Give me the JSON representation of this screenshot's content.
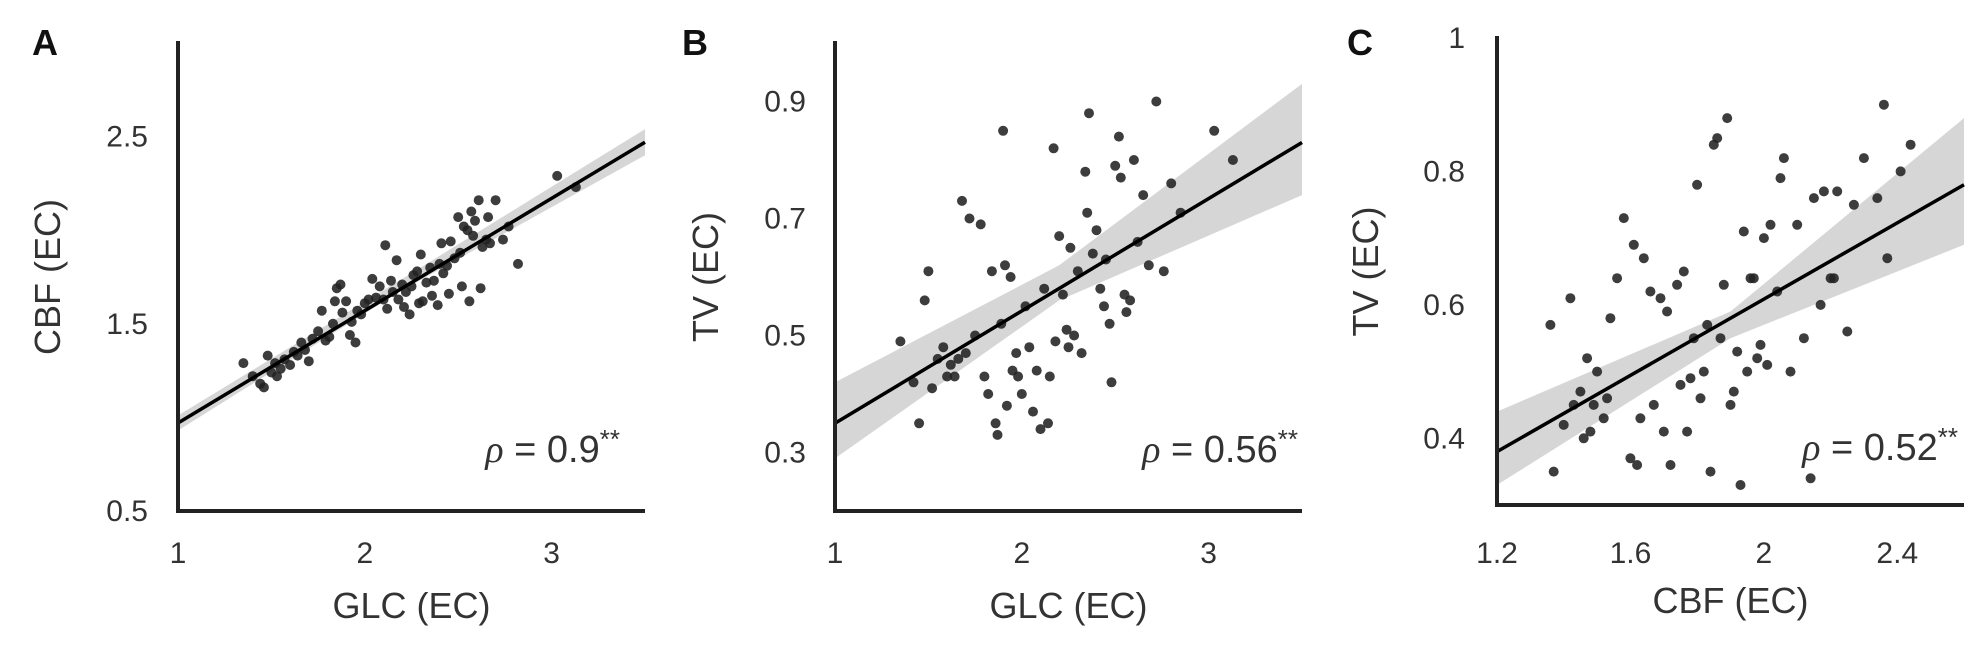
{
  "chart_data": [
    {
      "type": "scatter",
      "panel": "A",
      "xlabel": "GLC (EC)",
      "ylabel": "CBF (EC)",
      "xlim": [
        1,
        3.5
      ],
      "ylim": [
        0.5,
        3.0
      ],
      "xticks": [
        "1",
        "2",
        "3"
      ],
      "yticks": [
        "0.5",
        "1.5",
        "2.5"
      ],
      "annotation": {
        "symbol": "ρ",
        "text": " = 0.9",
        "stars": "**"
      },
      "fit": {
        "x": [
          1,
          3.5
        ],
        "y": [
          0.97,
          2.47
        ]
      },
      "band": {
        "x": [
          1,
          2.2,
          3.5
        ],
        "lower": [
          0.93,
          1.68,
          2.4
        ],
        "upper": [
          1.01,
          1.74,
          2.54
        ]
      },
      "points": [
        [
          1.35,
          1.29
        ],
        [
          1.4,
          1.22
        ],
        [
          1.44,
          1.18
        ],
        [
          1.46,
          1.16
        ],
        [
          1.48,
          1.33
        ],
        [
          1.5,
          1.24
        ],
        [
          1.52,
          1.29
        ],
        [
          1.53,
          1.22
        ],
        [
          1.55,
          1.26
        ],
        [
          1.57,
          1.31
        ],
        [
          1.6,
          1.28
        ],
        [
          1.62,
          1.35
        ],
        [
          1.64,
          1.33
        ],
        [
          1.66,
          1.4
        ],
        [
          1.68,
          1.36
        ],
        [
          1.7,
          1.3
        ],
        [
          1.72,
          1.42
        ],
        [
          1.75,
          1.46
        ],
        [
          1.77,
          1.57
        ],
        [
          1.79,
          1.41
        ],
        [
          1.81,
          1.43
        ],
        [
          1.83,
          1.5
        ],
        [
          1.84,
          1.62
        ],
        [
          1.85,
          1.69
        ],
        [
          1.87,
          1.71
        ],
        [
          1.88,
          1.56
        ],
        [
          1.9,
          1.62
        ],
        [
          1.92,
          1.44
        ],
        [
          1.93,
          1.51
        ],
        [
          1.95,
          1.4
        ],
        [
          1.96,
          1.57
        ],
        [
          1.98,
          1.55
        ],
        [
          2.0,
          1.61
        ],
        [
          2.02,
          1.63
        ],
        [
          2.04,
          1.74
        ],
        [
          2.06,
          1.64
        ],
        [
          2.08,
          1.7
        ],
        [
          2.1,
          1.63
        ],
        [
          2.11,
          1.92
        ],
        [
          2.12,
          1.58
        ],
        [
          2.14,
          1.73
        ],
        [
          2.15,
          1.67
        ],
        [
          2.17,
          1.84
        ],
        [
          2.18,
          1.63
        ],
        [
          2.2,
          1.71
        ],
        [
          2.21,
          1.59
        ],
        [
          2.22,
          1.67
        ],
        [
          2.24,
          1.55
        ],
        [
          2.25,
          1.7
        ],
        [
          2.26,
          1.76
        ],
        [
          2.28,
          1.78
        ],
        [
          2.29,
          1.61
        ],
        [
          2.3,
          1.87
        ],
        [
          2.31,
          1.62
        ],
        [
          2.33,
          1.72
        ],
        [
          2.35,
          1.8
        ],
        [
          2.36,
          1.65
        ],
        [
          2.37,
          1.73
        ],
        [
          2.39,
          1.6
        ],
        [
          2.4,
          1.82
        ],
        [
          2.41,
          1.93
        ],
        [
          2.42,
          1.77
        ],
        [
          2.44,
          1.81
        ],
        [
          2.45,
          1.66
        ],
        [
          2.46,
          1.94
        ],
        [
          2.48,
          1.85
        ],
        [
          2.5,
          2.07
        ],
        [
          2.51,
          1.88
        ],
        [
          2.52,
          1.7
        ],
        [
          2.53,
          2.02
        ],
        [
          2.55,
          2.0
        ],
        [
          2.56,
          1.62
        ],
        [
          2.57,
          2.1
        ],
        [
          2.58,
          1.97
        ],
        [
          2.59,
          2.05
        ],
        [
          2.61,
          2.16
        ],
        [
          2.62,
          1.69
        ],
        [
          2.63,
          1.91
        ],
        [
          2.65,
          1.95
        ],
        [
          2.66,
          2.07
        ],
        [
          2.67,
          1.93
        ],
        [
          2.7,
          2.16
        ],
        [
          2.74,
          1.95
        ],
        [
          2.77,
          2.02
        ],
        [
          2.82,
          1.82
        ],
        [
          3.03,
          2.29
        ],
        [
          3.13,
          2.23
        ]
      ]
    },
    {
      "type": "scatter",
      "panel": "B",
      "xlabel": "GLC (EC)",
      "ylabel": "TV (EC)",
      "xlim": [
        1,
        3.5
      ],
      "ylim": [
        0.2,
        1.0
      ],
      "xticks": [
        "1",
        "2",
        "3"
      ],
      "yticks": [
        "0.3",
        "0.5",
        "0.7",
        "0.9"
      ],
      "annotation": {
        "symbol": "ρ",
        "text": " = 0.56",
        "stars": "**"
      },
      "fit": {
        "x": [
          1,
          3.5
        ],
        "y": [
          0.35,
          0.83
        ]
      },
      "band": {
        "x": [
          1,
          2.2,
          3.5
        ],
        "lower": [
          0.29,
          0.56,
          0.74
        ],
        "upper": [
          0.42,
          0.62,
          0.93
        ]
      },
      "points": [
        [
          1.35,
          0.49
        ],
        [
          1.42,
          0.42
        ],
        [
          1.45,
          0.35
        ],
        [
          1.48,
          0.56
        ],
        [
          1.5,
          0.61
        ],
        [
          1.52,
          0.41
        ],
        [
          1.55,
          0.46
        ],
        [
          1.58,
          0.48
        ],
        [
          1.6,
          0.43
        ],
        [
          1.62,
          0.45
        ],
        [
          1.64,
          0.43
        ],
        [
          1.66,
          0.46
        ],
        [
          1.68,
          0.73
        ],
        [
          1.7,
          0.47
        ],
        [
          1.72,
          0.7
        ],
        [
          1.75,
          0.5
        ],
        [
          1.78,
          0.69
        ],
        [
          1.8,
          0.43
        ],
        [
          1.82,
          0.4
        ],
        [
          1.84,
          0.61
        ],
        [
          1.86,
          0.35
        ],
        [
          1.87,
          0.33
        ],
        [
          1.89,
          0.52
        ],
        [
          1.9,
          0.85
        ],
        [
          1.91,
          0.62
        ],
        [
          1.92,
          0.38
        ],
        [
          1.94,
          0.6
        ],
        [
          1.95,
          0.44
        ],
        [
          1.97,
          0.47
        ],
        [
          1.98,
          0.43
        ],
        [
          2.0,
          0.4
        ],
        [
          2.02,
          0.55
        ],
        [
          2.04,
          0.48
        ],
        [
          2.06,
          0.37
        ],
        [
          2.08,
          0.44
        ],
        [
          2.1,
          0.34
        ],
        [
          2.12,
          0.58
        ],
        [
          2.14,
          0.35
        ],
        [
          2.15,
          0.43
        ],
        [
          2.17,
          0.82
        ],
        [
          2.18,
          0.49
        ],
        [
          2.2,
          0.67
        ],
        [
          2.22,
          0.57
        ],
        [
          2.24,
          0.51
        ],
        [
          2.25,
          0.48
        ],
        [
          2.26,
          0.65
        ],
        [
          2.28,
          0.5
        ],
        [
          2.3,
          0.61
        ],
        [
          2.32,
          0.47
        ],
        [
          2.34,
          0.78
        ],
        [
          2.35,
          0.71
        ],
        [
          2.36,
          0.88
        ],
        [
          2.38,
          0.64
        ],
        [
          2.4,
          0.68
        ],
        [
          2.42,
          0.58
        ],
        [
          2.44,
          0.55
        ],
        [
          2.45,
          0.63
        ],
        [
          2.47,
          0.52
        ],
        [
          2.48,
          0.42
        ],
        [
          2.5,
          0.79
        ],
        [
          2.52,
          0.84
        ],
        [
          2.53,
          0.77
        ],
        [
          2.55,
          0.57
        ],
        [
          2.56,
          0.54
        ],
        [
          2.58,
          0.56
        ],
        [
          2.6,
          0.8
        ],
        [
          2.62,
          0.66
        ],
        [
          2.65,
          0.74
        ],
        [
          2.68,
          0.62
        ],
        [
          2.72,
          0.9
        ],
        [
          2.76,
          0.61
        ],
        [
          2.8,
          0.76
        ],
        [
          2.85,
          0.71
        ],
        [
          3.03,
          0.85
        ],
        [
          3.13,
          0.8
        ]
      ]
    },
    {
      "type": "scatter",
      "panel": "C",
      "xlabel": "CBF (EC)",
      "ylabel": "TV (EC)",
      "xlim": [
        1.2,
        2.6
      ],
      "ylim": [
        0.3,
        1.0
      ],
      "xticks": [
        "1.2",
        "1.6",
        "2",
        "2.4"
      ],
      "yticks": [
        "0.4",
        "0.6",
        "0.8",
        "1"
      ],
      "annotation": {
        "symbol": "ρ",
        "text": " = 0.52",
        "stars": "**"
      },
      "fit": {
        "x": [
          1.2,
          2.6
        ],
        "y": [
          0.38,
          0.78
        ]
      },
      "band": {
        "x": [
          1.2,
          1.9,
          2.6
        ],
        "lower": [
          0.33,
          0.55,
          0.69
        ],
        "upper": [
          0.44,
          0.59,
          0.88
        ]
      },
      "points": [
        [
          1.36,
          0.57
        ],
        [
          1.37,
          0.35
        ],
        [
          1.4,
          0.42
        ],
        [
          1.42,
          0.61
        ],
        [
          1.43,
          0.45
        ],
        [
          1.45,
          0.47
        ],
        [
          1.46,
          0.4
        ],
        [
          1.47,
          0.52
        ],
        [
          1.48,
          0.41
        ],
        [
          1.49,
          0.45
        ],
        [
          1.5,
          0.5
        ],
        [
          1.52,
          0.43
        ],
        [
          1.53,
          0.46
        ],
        [
          1.54,
          0.58
        ],
        [
          1.56,
          0.64
        ],
        [
          1.58,
          0.73
        ],
        [
          1.6,
          0.37
        ],
        [
          1.61,
          0.69
        ],
        [
          1.62,
          0.36
        ],
        [
          1.63,
          0.43
        ],
        [
          1.64,
          0.67
        ],
        [
          1.66,
          0.62
        ],
        [
          1.67,
          0.45
        ],
        [
          1.69,
          0.61
        ],
        [
          1.7,
          0.41
        ],
        [
          1.71,
          0.59
        ],
        [
          1.72,
          0.36
        ],
        [
          1.74,
          0.63
        ],
        [
          1.75,
          0.48
        ],
        [
          1.76,
          0.65
        ],
        [
          1.77,
          0.41
        ],
        [
          1.78,
          0.49
        ],
        [
          1.79,
          0.55
        ],
        [
          1.8,
          0.78
        ],
        [
          1.81,
          0.46
        ],
        [
          1.82,
          0.5
        ],
        [
          1.83,
          0.57
        ],
        [
          1.84,
          0.35
        ],
        [
          1.85,
          0.84
        ],
        [
          1.86,
          0.85
        ],
        [
          1.87,
          0.55
        ],
        [
          1.88,
          0.63
        ],
        [
          1.89,
          0.88
        ],
        [
          1.9,
          0.45
        ],
        [
          1.91,
          0.47
        ],
        [
          1.92,
          0.53
        ],
        [
          1.93,
          0.33
        ],
        [
          1.94,
          0.71
        ],
        [
          1.95,
          0.5
        ],
        [
          1.96,
          0.64
        ],
        [
          1.97,
          0.64
        ],
        [
          1.98,
          0.52
        ],
        [
          1.99,
          0.54
        ],
        [
          2.0,
          0.7
        ],
        [
          2.01,
          0.51
        ],
        [
          2.02,
          0.72
        ],
        [
          2.04,
          0.62
        ],
        [
          2.05,
          0.79
        ],
        [
          2.06,
          0.82
        ],
        [
          2.08,
          0.5
        ],
        [
          2.1,
          0.72
        ],
        [
          2.12,
          0.55
        ],
        [
          2.14,
          0.34
        ],
        [
          2.15,
          0.76
        ],
        [
          2.17,
          0.6
        ],
        [
          2.18,
          0.77
        ],
        [
          2.2,
          0.64
        ],
        [
          2.21,
          0.64
        ],
        [
          2.22,
          0.77
        ],
        [
          2.25,
          0.56
        ],
        [
          2.27,
          0.75
        ],
        [
          2.3,
          0.82
        ],
        [
          2.34,
          0.76
        ],
        [
          2.36,
          0.9
        ],
        [
          2.37,
          0.67
        ],
        [
          2.41,
          0.8
        ],
        [
          2.44,
          0.84
        ]
      ]
    }
  ],
  "colors": {
    "points": "#222222",
    "fit_line": "#000000",
    "band": "#cccccc",
    "axes": "#222222",
    "text": "#333333"
  }
}
